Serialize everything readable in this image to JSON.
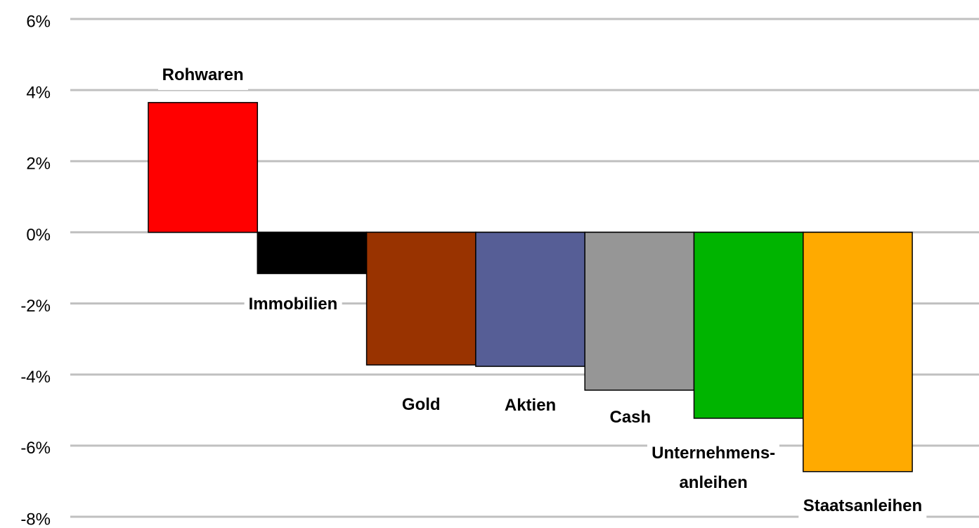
{
  "chart_data": {
    "type": "bar",
    "categories": [
      "Rohwaren",
      "Immobilien",
      "Gold",
      "Aktien",
      "Cash",
      "Unternehmens-\nanleihen",
      "Staatsanleihen"
    ],
    "values": [
      3.65,
      -1.16,
      -3.73,
      -3.77,
      -4.44,
      -5.23,
      -6.73
    ],
    "colors": [
      "#ff0000",
      "#000000",
      "#993300",
      "#565e96",
      "#969696",
      "#00b400",
      "#ffaa00"
    ],
    "ylim": [
      -8,
      6
    ],
    "yticks": [
      {
        "value": -8,
        "label": "-8%"
      },
      {
        "value": -6,
        "label": "-6%"
      },
      {
        "value": -4,
        "label": "-4%"
      },
      {
        "value": -2,
        "label": "-2%"
      },
      {
        "value": 0,
        "label": "0%"
      },
      {
        "value": 2,
        "label": "2%"
      },
      {
        "value": 4,
        "label": "4%"
      },
      {
        "value": 6,
        "label": "6%"
      }
    ],
    "grid": true
  }
}
